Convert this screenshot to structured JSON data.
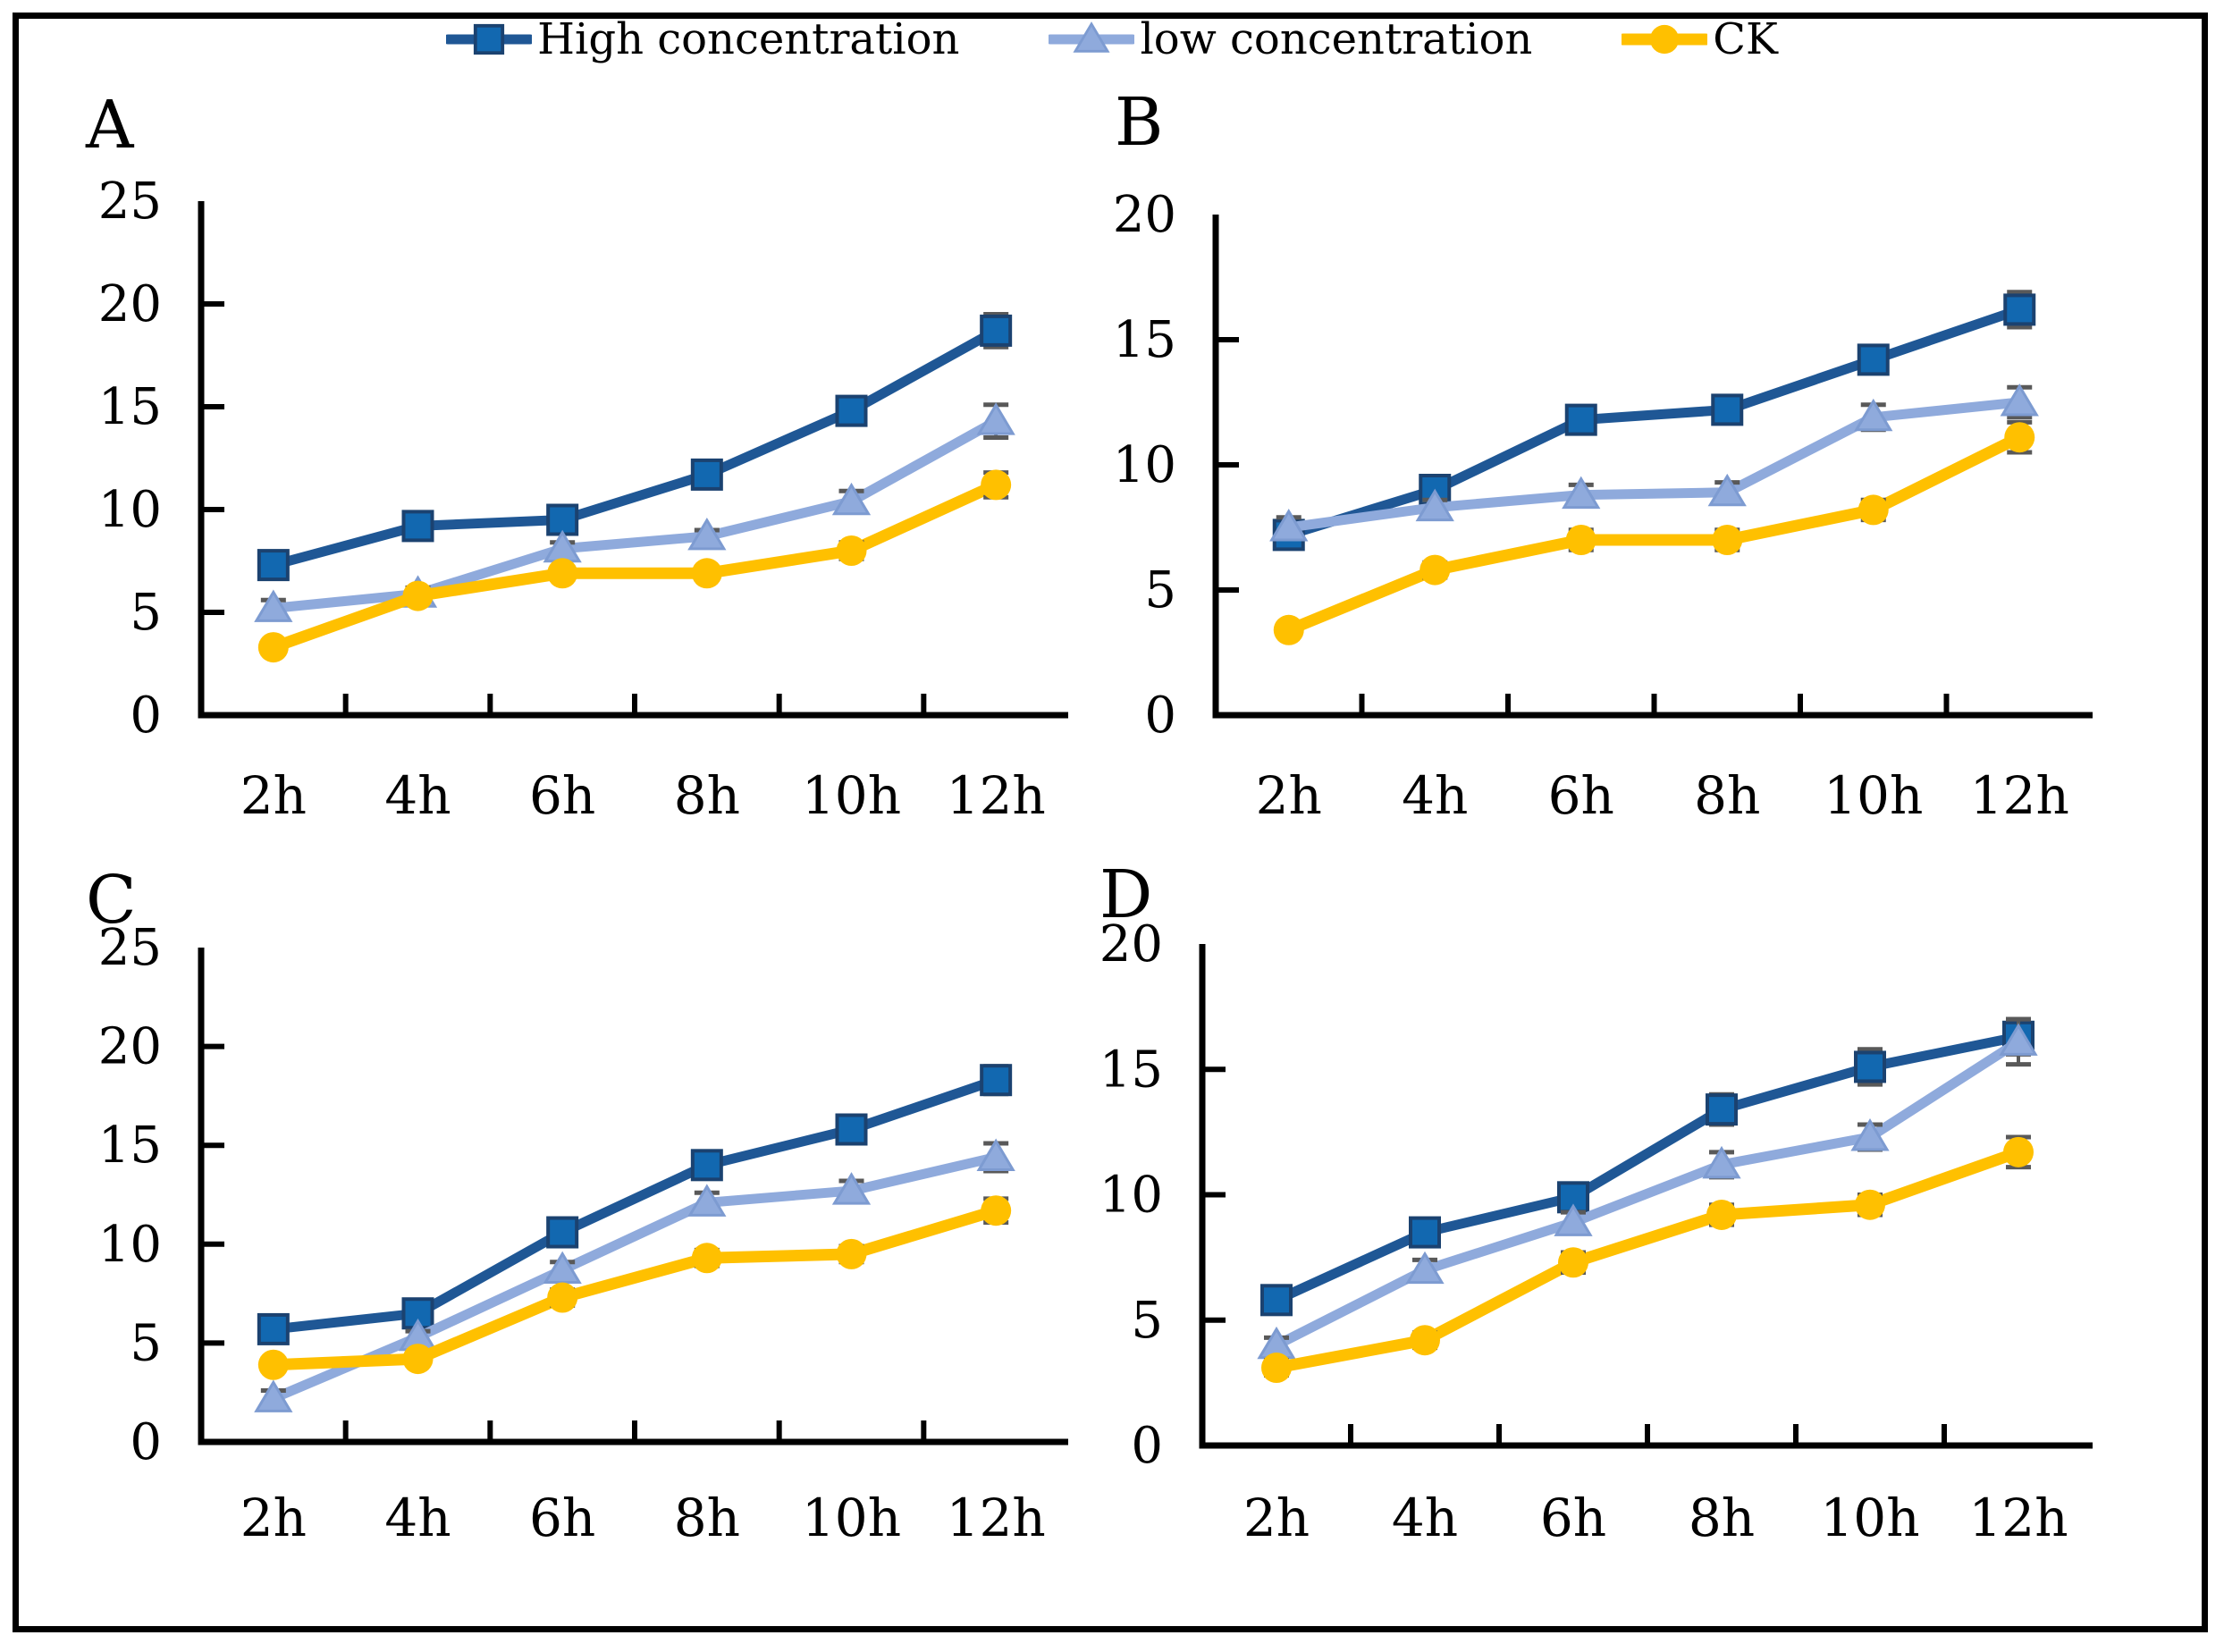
{
  "figure": {
    "background": "#ffffff",
    "border_color": "#000000"
  },
  "colors": {
    "axis": "#000000",
    "error_bar": "#595959",
    "high_line": "#1F5795",
    "high_fill": "#1268B0",
    "high_edge": "#1B4270",
    "low_line": "#8FAADC",
    "low_fill": "#8FAADC",
    "low_edge": "#7D9BD1",
    "ck_line": "#FFC000",
    "ck_fill": "#FFC000"
  },
  "chart_data": [
    {
      "type": "line",
      "panel_label": "A",
      "categories": [
        "2h",
        "4h",
        "6h",
        "8h",
        "10h",
        "12h"
      ],
      "ylim": [
        0,
        25
      ],
      "yticks": [
        0,
        5,
        10,
        15,
        20,
        25
      ],
      "grid": false,
      "legend_position": "top",
      "series": [
        {
          "name": "High concentration",
          "marker": "square",
          "values": [
            7.3,
            9.2,
            9.5,
            11.7,
            14.8,
            18.7
          ],
          "errors": [
            0.3,
            0.3,
            0.3,
            0.3,
            0.5,
            0.8
          ]
        },
        {
          "name": "low concentration",
          "marker": "triangle",
          "values": [
            5.2,
            5.9,
            8.1,
            8.7,
            10.4,
            14.3
          ],
          "errors": [
            0.4,
            0.3,
            0.3,
            0.3,
            0.5,
            0.8
          ]
        },
        {
          "name": "CK",
          "marker": "circle",
          "values": [
            3.3,
            5.8,
            6.9,
            6.9,
            8.0,
            11.2
          ],
          "errors": [
            0.3,
            0.3,
            0.3,
            0.3,
            0.4,
            0.6
          ]
        }
      ]
    },
    {
      "type": "line",
      "panel_label": "B",
      "categories": [
        "2h",
        "4h",
        "6h",
        "8h",
        "10h",
        "12h"
      ],
      "ylim": [
        0,
        20
      ],
      "yticks": [
        0,
        5,
        10,
        15,
        20
      ],
      "grid": false,
      "legend_position": "top",
      "series": [
        {
          "name": "High concentration",
          "marker": "square",
          "values": [
            7.2,
            9.0,
            11.8,
            12.2,
            14.2,
            16.2
          ],
          "errors": [
            0.4,
            0.4,
            0.4,
            0.5,
            0.5,
            0.7
          ]
        },
        {
          "name": "low concentration",
          "marker": "triangle",
          "values": [
            7.5,
            8.3,
            8.8,
            8.9,
            11.9,
            12.5
          ],
          "errors": [
            0.4,
            0.3,
            0.4,
            0.4,
            0.5,
            0.6
          ]
        },
        {
          "name": "CK",
          "marker": "circle",
          "values": [
            3.4,
            5.8,
            7.0,
            7.0,
            8.2,
            11.1
          ],
          "errors": [
            0.2,
            0.3,
            0.4,
            0.4,
            0.4,
            0.6
          ]
        }
      ]
    },
    {
      "type": "line",
      "panel_label": "C",
      "categories": [
        "2h",
        "4h",
        "6h",
        "8h",
        "10h",
        "12h"
      ],
      "ylim": [
        0,
        25
      ],
      "yticks": [
        0,
        5,
        10,
        15,
        20,
        25
      ],
      "grid": false,
      "legend_position": "top",
      "series": [
        {
          "name": "High concentration",
          "marker": "square",
          "values": [
            5.7,
            6.5,
            10.6,
            14.0,
            15.8,
            18.3
          ],
          "errors": [
            0.3,
            0.3,
            0.4,
            0.5,
            0.5,
            0.7
          ]
        },
        {
          "name": "low concentration",
          "marker": "triangle",
          "values": [
            2.2,
            5.3,
            8.7,
            12.1,
            12.7,
            14.4
          ],
          "errors": [
            0.4,
            0.3,
            0.4,
            0.5,
            0.5,
            0.7
          ]
        },
        {
          "name": "CK",
          "marker": "circle",
          "values": [
            3.9,
            4.2,
            7.3,
            9.3,
            9.5,
            11.7
          ],
          "errors": [
            0.3,
            0.3,
            0.4,
            0.4,
            0.4,
            0.6
          ]
        }
      ]
    },
    {
      "type": "line",
      "panel_label": "D",
      "categories": [
        "2h",
        "4h",
        "6h",
        "8h",
        "10h",
        "12h"
      ],
      "ylim": [
        0,
        20
      ],
      "yticks": [
        0,
        5,
        10,
        15,
        20
      ],
      "grid": false,
      "legend_position": "top",
      "series": [
        {
          "name": "High concentration",
          "marker": "square",
          "values": [
            5.8,
            8.5,
            9.9,
            13.4,
            15.1,
            16.3
          ],
          "errors": [
            0.3,
            0.3,
            0.4,
            0.6,
            0.7,
            0.7
          ]
        },
        {
          "name": "low concentration",
          "marker": "triangle",
          "values": [
            4.0,
            7.0,
            8.9,
            11.2,
            12.3,
            16.1
          ],
          "errors": [
            0.3,
            0.4,
            0.4,
            0.5,
            0.5,
            0.9
          ]
        },
        {
          "name": "CK",
          "marker": "circle",
          "values": [
            3.1,
            4.2,
            7.3,
            9.2,
            9.6,
            11.7
          ],
          "errors": [
            0.3,
            0.3,
            0.4,
            0.4,
            0.4,
            0.6
          ]
        }
      ]
    }
  ]
}
